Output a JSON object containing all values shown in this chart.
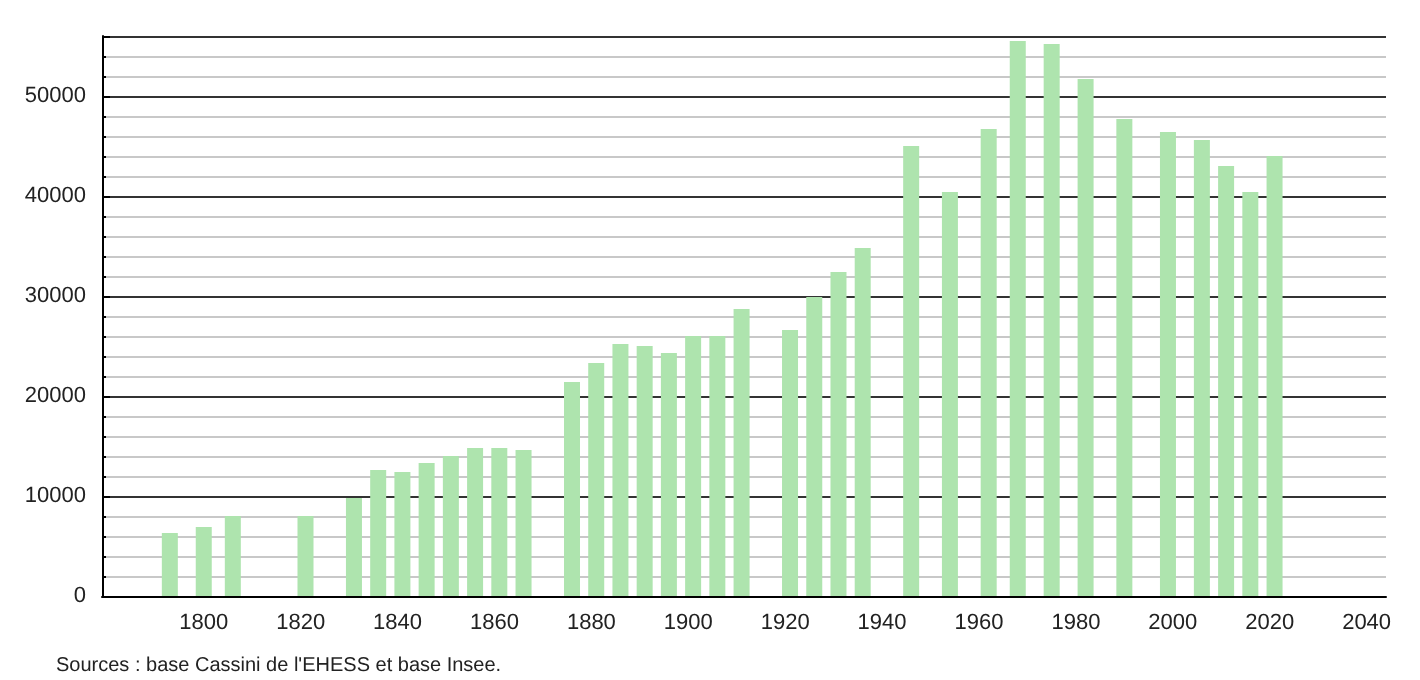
{
  "chart_data": {
    "type": "bar",
    "x": [
      1793,
      1800,
      1806,
      1821,
      1831,
      1836,
      1841,
      1846,
      1851,
      1856,
      1861,
      1866,
      1876,
      1881,
      1886,
      1891,
      1896,
      1901,
      1906,
      1911,
      1921,
      1926,
      1931,
      1936,
      1946,
      1954,
      1962,
      1968,
      1975,
      1982,
      1990,
      1999,
      2006,
      2011,
      2016,
      2021
    ],
    "values": [
      6300,
      6900,
      8000,
      8000,
      9800,
      12600,
      12400,
      13300,
      14000,
      14800,
      14800,
      14600,
      21400,
      23300,
      25200,
      25000,
      24300,
      26000,
      26000,
      28700,
      26600,
      29900,
      32400,
      34800,
      45000,
      40400,
      46700,
      55500,
      55200,
      51700,
      47700,
      46400,
      45600,
      43000,
      40400,
      44000
    ],
    "color": "#aee4ae",
    "xlim": [
      1779,
      2044
    ],
    "xticks": [
      1800,
      1820,
      1840,
      1860,
      1880,
      1900,
      1920,
      1940,
      1960,
      1980,
      2000,
      2020,
      2040
    ],
    "ylim": [
      0,
      56000
    ],
    "yticks": [
      0,
      10000,
      20000,
      30000,
      40000,
      50000
    ],
    "grid": "y",
    "annotations": [
      "Sources : base Cassini de l'EHESS et base Insee."
    ]
  }
}
